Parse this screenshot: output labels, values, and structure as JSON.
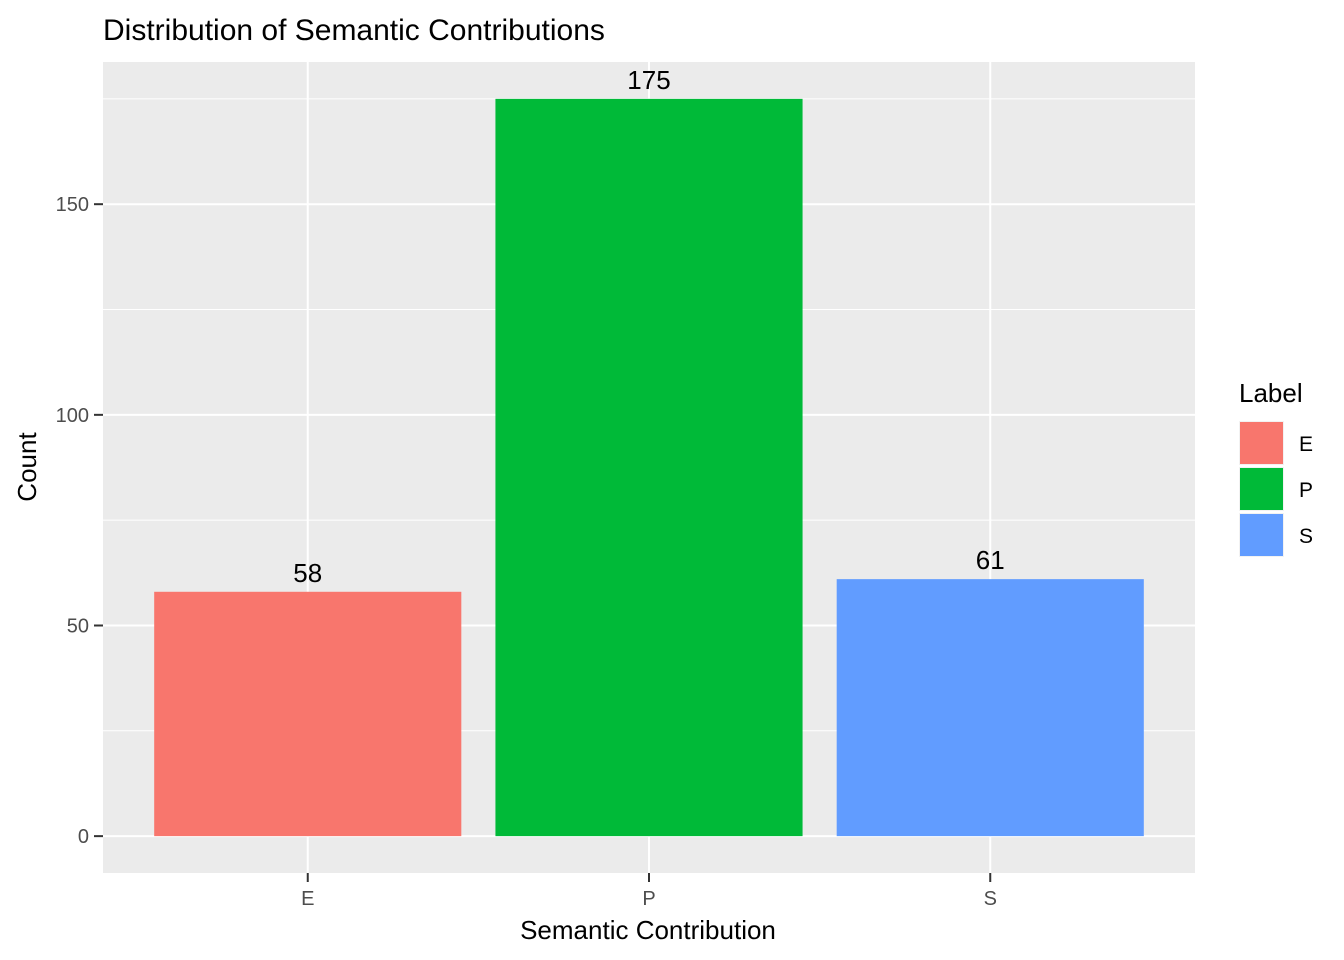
{
  "chart_data": {
    "type": "bar",
    "title": "Distribution of Semantic Contributions",
    "xlabel": "Semantic Contribution",
    "ylabel": "Count",
    "categories": [
      "E",
      "P",
      "S"
    ],
    "values": [
      58,
      175,
      61
    ],
    "data_labels": [
      "58",
      "175",
      "61"
    ],
    "colors": [
      "#F8766D",
      "#00BA38",
      "#619CFF"
    ],
    "ylim": [
      -8.75,
      183.75
    ],
    "yticks": [
      0,
      50,
      100,
      150
    ],
    "ytick_labels": [
      "0",
      "50",
      "100",
      "150"
    ],
    "grid": true,
    "panel_background": "#EBEBEB",
    "grid_color": "#FFFFFF",
    "legend": {
      "title": "Label",
      "position": "right",
      "entries": [
        "E",
        "P",
        "S"
      ]
    }
  }
}
